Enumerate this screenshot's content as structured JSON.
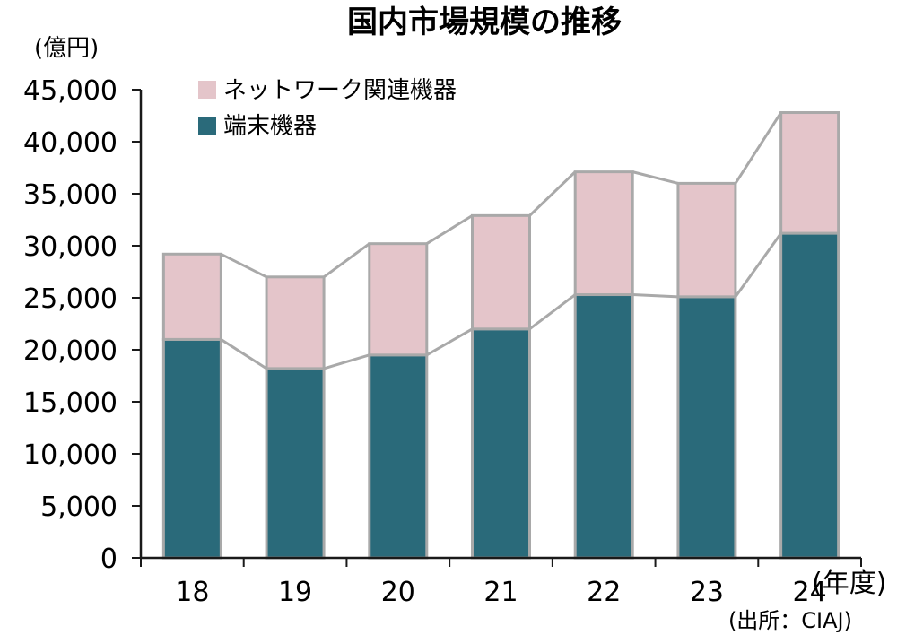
{
  "chart_data": {
    "type": "bar",
    "stacked": true,
    "title": "国内市場規模の推移",
    "y_unit": "(億円)",
    "x_unit": "(年度)",
    "source": "(出所：CIAJ)",
    "categories": [
      "18",
      "19",
      "20",
      "21",
      "22",
      "23",
      "24"
    ],
    "series": [
      {
        "name": "端末機器",
        "color": "#2a6a7a",
        "values": [
          21000,
          18200,
          19500,
          22000,
          25300,
          25100,
          31200
        ]
      },
      {
        "name": "ネットワーク関連機器",
        "color": "#e4c5ca",
        "values": [
          8200,
          8800,
          10700,
          10900,
          11800,
          10900,
          11600
        ]
      }
    ],
    "ylim": [
      0,
      45000
    ],
    "yticks": [
      "0",
      "5,000",
      "10,000",
      "15,000",
      "20,000",
      "25,000",
      "30,000",
      "35,000",
      "40,000",
      "45,000"
    ],
    "legend_position": "top-left",
    "connector_lines": true
  }
}
